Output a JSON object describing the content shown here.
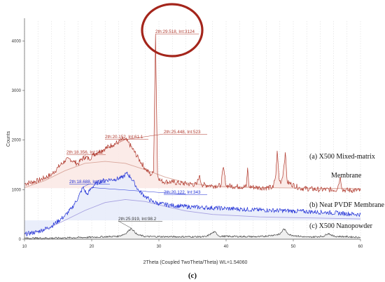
{
  "chart_data": {
    "type": "line",
    "title": "",
    "xlabel": "2Theta (Coupled TwoTheta/Theta) WL=1.54060",
    "ylabel": "Counts",
    "xlim": [
      10,
      60
    ],
    "ylim": [
      0,
      4400
    ],
    "x_ticks": [
      10,
      20,
      30,
      40,
      50,
      60
    ],
    "y_ticks": [
      0,
      1000,
      2000,
      3000,
      4000
    ],
    "grid": "dashed vertical minor lines",
    "panel_label": "(c)",
    "series": [
      {
        "name": "(a) X500 Mixed-matrix",
        "label_line2": "Membrane",
        "color": "#b03a2e",
        "fill": "#fbe9e6",
        "baseline": 1030,
        "x": [
          10,
          12,
          14,
          15,
          16,
          16.8,
          17.4,
          18,
          18.4,
          19,
          19.6,
          20.2,
          21,
          22,
          23,
          24,
          24.8,
          25.4,
          26,
          27,
          28,
          28.8,
          29.2,
          29.5,
          29.8,
          30.2,
          31,
          32,
          34,
          35.6,
          36,
          36.4,
          38,
          39.2,
          39.6,
          40,
          42,
          43,
          43.2,
          43.4,
          45,
          47,
          47.4,
          47.6,
          47.9,
          48.2,
          48.5,
          48.8,
          49.1,
          51,
          54,
          56.5,
          57,
          57.3,
          57.8,
          60
        ],
        "values": [
          1120,
          1180,
          1300,
          1450,
          1580,
          1620,
          1560,
          1520,
          1600,
          1660,
          1620,
          1700,
          1760,
          1830,
          1900,
          1960,
          2020,
          1960,
          1840,
          1620,
          1420,
          1300,
          1350,
          4120,
          1300,
          1180,
          1160,
          1150,
          1120,
          1100,
          1280,
          1100,
          1080,
          1080,
          1450,
          1080,
          1060,
          1060,
          1440,
          1060,
          1040,
          1040,
          1300,
          1780,
          1200,
          1150,
          1350,
          1750,
          1150,
          1030,
          1000,
          1000,
          1250,
          1000,
          990,
          980
        ]
      },
      {
        "name": "(b) Neat PVDF Membrane",
        "color": "#1f2fd6",
        "fill": "#e8ecfb",
        "baseline": 380,
        "x": [
          10,
          12,
          14,
          16,
          17,
          18,
          18.7,
          19.3,
          20,
          20.6,
          21.5,
          22.5,
          23.5,
          24.5,
          25.2,
          25.8,
          26.4,
          27,
          28,
          29,
          30,
          32,
          35,
          40,
          45,
          50,
          55,
          60
        ],
        "values": [
          100,
          150,
          260,
          470,
          620,
          840,
          1050,
          900,
          1040,
          1120,
          1180,
          1200,
          1210,
          1240,
          1330,
          1250,
          1120,
          980,
          860,
          760,
          720,
          680,
          650,
          620,
          590,
          570,
          540,
          500
        ]
      },
      {
        "name": "(c) X500 Nanopowder",
        "color": "#444444",
        "fill": "#eeeeee",
        "baseline": 0,
        "x": [
          10,
          15,
          20,
          24,
          25,
          25.9,
          26.8,
          28,
          32,
          37,
          38,
          38.3,
          39,
          45,
          48,
          48.6,
          49.4,
          52,
          54.5,
          55.2,
          56,
          60
        ],
        "values": [
          20,
          25,
          40,
          60,
          110,
          220,
          90,
          55,
          50,
          50,
          130,
          150,
          60,
          50,
          100,
          210,
          90,
          40,
          60,
          120,
          60,
          40
        ]
      }
    ],
    "baseline_curves": [
      {
        "series": "(a) X500 Mixed-matrix",
        "color": "#d9a79c",
        "x": [
          10,
          13,
          16,
          19,
          22,
          25,
          28,
          31,
          34,
          38,
          45,
          52,
          60
        ],
        "values": [
          1040,
          1180,
          1380,
          1530,
          1570,
          1530,
          1400,
          1250,
          1140,
          1070,
          1040,
          1030,
          1020
        ]
      },
      {
        "series": "(b) Neat PVDF Membrane",
        "color": "#a6a0e0",
        "x": [
          10,
          13,
          16,
          19,
          22,
          25,
          28,
          31,
          34,
          38,
          45,
          52,
          60
        ],
        "values": [
          100,
          190,
          380,
          580,
          740,
          800,
          760,
          660,
          570,
          500,
          450,
          430,
          410
        ]
      }
    ],
    "annotations": [
      {
        "text": "2th:29.518, Int:3124",
        "color": "#b03a2e",
        "x": 29.518,
        "y": 4120
      },
      {
        "text": "2th:25.448, Int:523",
        "color": "#b03a2e",
        "x": 25.448,
        "y": 2020
      },
      {
        "text": "2th:20.152, Int:61.1",
        "color": "#b03a2e",
        "x": 20.152,
        "y": 1700
      },
      {
        "text": "2th:18.356, Int:182",
        "color": "#b03a2e",
        "x": 18.356,
        "y": 1600
      },
      {
        "text": "2th:18.688, Int:352",
        "color": "#1f2fd6",
        "x": 18.688,
        "y": 1050
      },
      {
        "text": "2th:20.122, Int:343",
        "color": "#1f2fd6",
        "x": 20.122,
        "y": 1040
      },
      {
        "text": "2th:25.919, Int:98.2",
        "color": "#333333",
        "x": 25.919,
        "y": 220
      }
    ],
    "highlight_ring": {
      "color": "#a4251b",
      "target": "2th:29.518, Int:3124"
    }
  }
}
